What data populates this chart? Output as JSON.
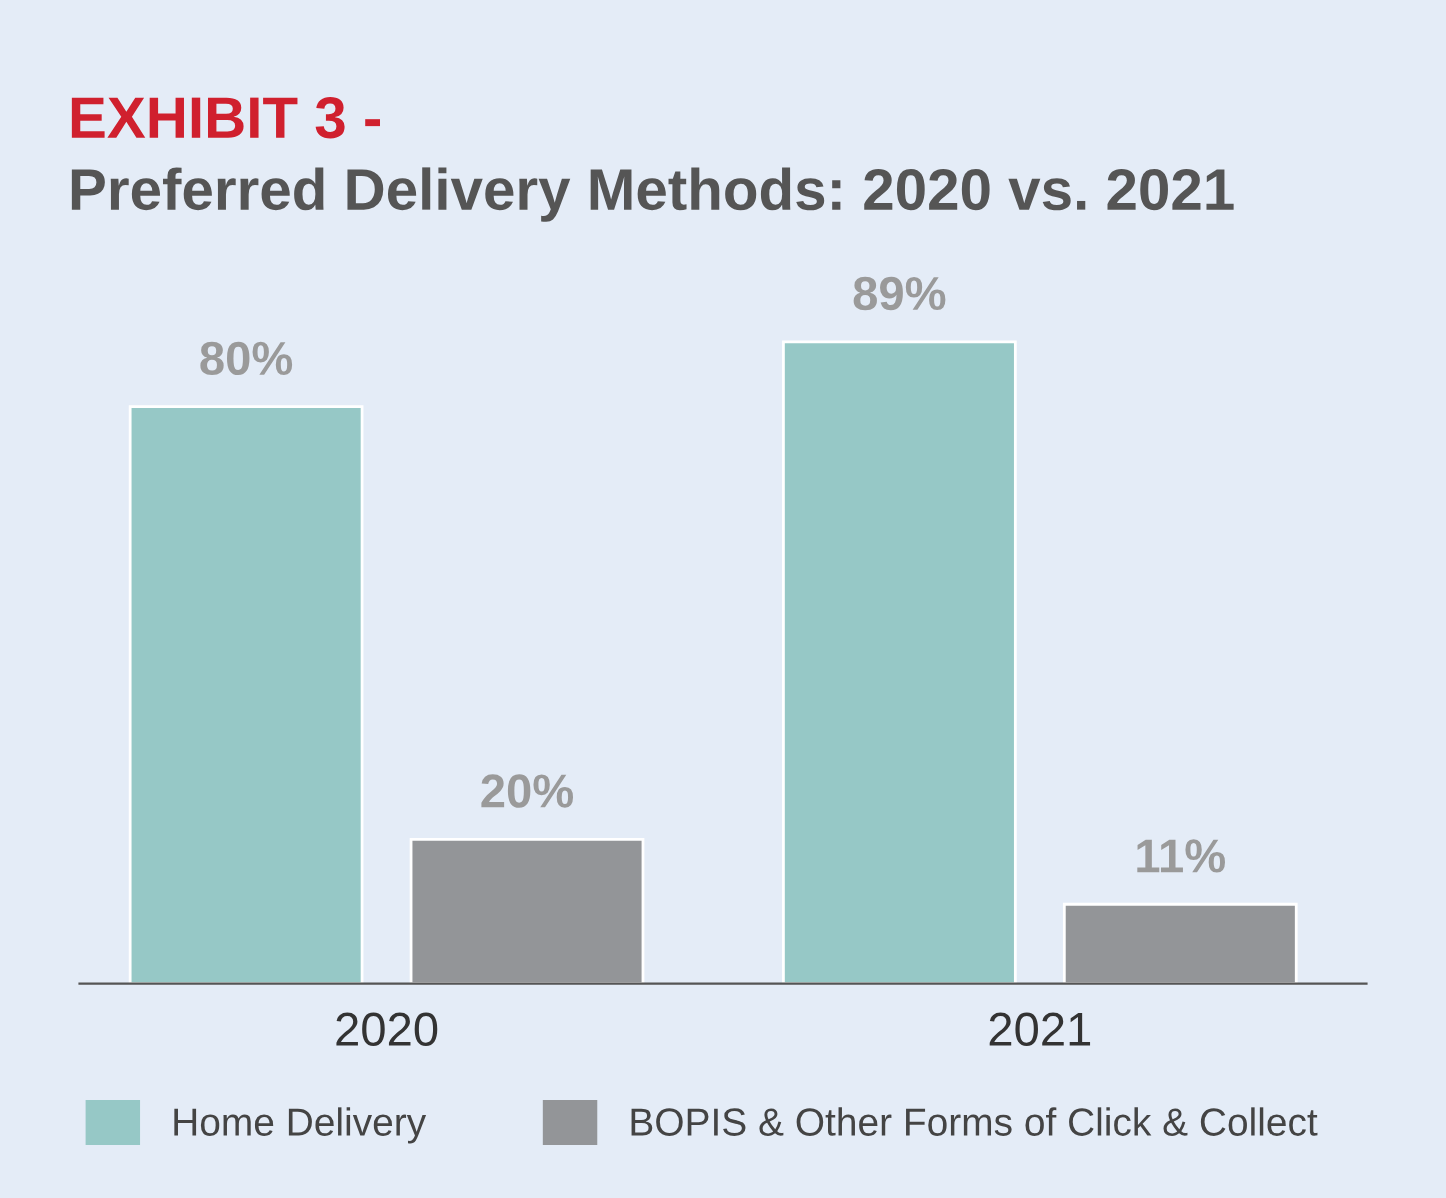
{
  "chart_data": {
    "type": "bar",
    "title": "EXHIBIT 3 -",
    "subtitle": "Preferred Delivery Methods: 2020 vs. 2021",
    "categories": [
      "2020",
      "2021"
    ],
    "series": [
      {
        "name": "Home Delivery",
        "color": "#96c8c6",
        "values": [
          80,
          89
        ],
        "value_labels": [
          "80%",
          "89%"
        ]
      },
      {
        "name": "BOPIS & Other Forms of Click & Collect",
        "color": "#939598",
        "values": [
          20,
          11
        ],
        "value_labels": [
          "20%",
          "11%"
        ]
      }
    ],
    "legend": "bottom",
    "grid": false
  }
}
